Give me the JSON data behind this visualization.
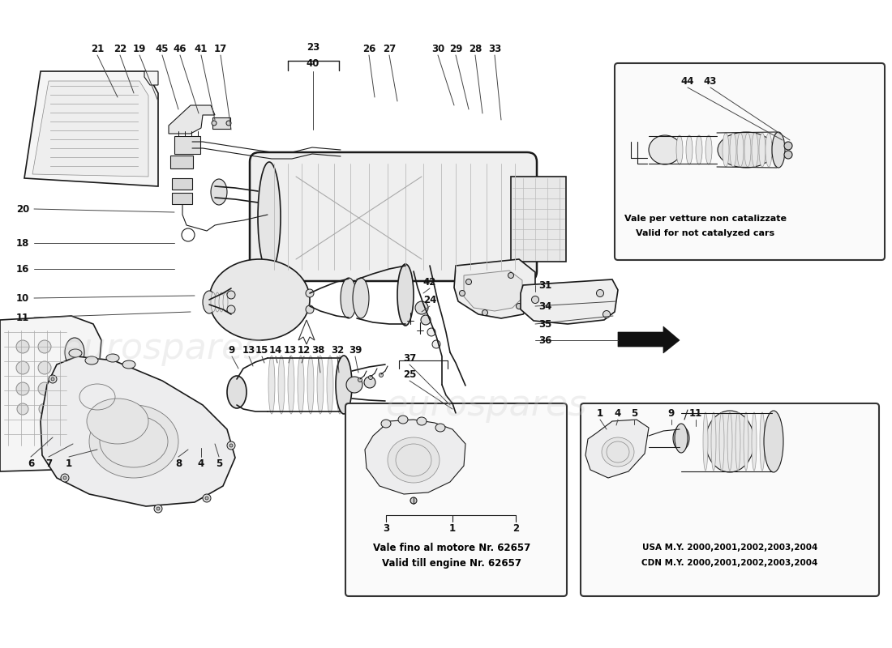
{
  "bg_color": "#ffffff",
  "line_color": "#1a1a1a",
  "label_color": "#111111",
  "wm_color": "#cccccc",
  "wm_alpha": 0.3,
  "inset1_caption1": "Vale fino al motore Nr. 62657",
  "inset1_caption2": "Valid till engine Nr. 62657",
  "inset2_caption1": "USA M.Y. 2000,2001,2002,2003,2004",
  "inset2_caption2": "CDN M.Y. 2000,2001,2002,2003,2004",
  "inset3_caption1": "Vale per vetture non catalizzate",
  "inset3_caption2": "Valid for not catalyzed cars",
  "labels_top": [
    [
      "21",
      120,
      60
    ],
    [
      "22",
      148,
      60
    ],
    [
      "19",
      172,
      60
    ],
    [
      "45",
      200,
      60
    ],
    [
      "46",
      222,
      60
    ],
    [
      "41",
      248,
      60
    ],
    [
      "17",
      272,
      60
    ],
    [
      "23",
      385,
      38
    ],
    [
      "40",
      385,
      58
    ],
    [
      "26",
      455,
      60
    ],
    [
      "27",
      480,
      60
    ],
    [
      "30",
      540,
      60
    ],
    [
      "29",
      562,
      60
    ],
    [
      "28",
      586,
      60
    ],
    [
      "33",
      610,
      60
    ]
  ],
  "labels_left": [
    [
      "20",
      28,
      258
    ],
    [
      "18",
      28,
      300
    ],
    [
      "16",
      28,
      332
    ],
    [
      "10",
      28,
      368
    ],
    [
      "11",
      28,
      392
    ]
  ],
  "labels_right": [
    [
      "31",
      668,
      352
    ],
    [
      "34",
      668,
      378
    ],
    [
      "35",
      668,
      398
    ],
    [
      "36",
      668,
      420
    ]
  ],
  "labels_mid": [
    [
      "42",
      530,
      350
    ],
    [
      "24",
      530,
      372
    ],
    [
      "37",
      500,
      442
    ],
    [
      "25",
      500,
      462
    ],
    [
      "38",
      390,
      432
    ],
    [
      "32",
      414,
      432
    ],
    [
      "39",
      436,
      432
    ],
    [
      "9",
      284,
      432
    ],
    [
      "13",
      305,
      432
    ],
    [
      "15",
      322,
      432
    ],
    [
      "14",
      340,
      432
    ],
    [
      "13",
      358,
      432
    ],
    [
      "12",
      374,
      432
    ]
  ],
  "labels_bot": [
    [
      "6",
      38,
      572
    ],
    [
      "7",
      60,
      572
    ],
    [
      "1",
      85,
      572
    ],
    [
      "8",
      220,
      572
    ],
    [
      "4",
      248,
      572
    ],
    [
      "5",
      270,
      572
    ]
  ],
  "labels_44_43": [
    [
      "44",
      848,
      100
    ],
    [
      "43",
      874,
      100
    ]
  ]
}
